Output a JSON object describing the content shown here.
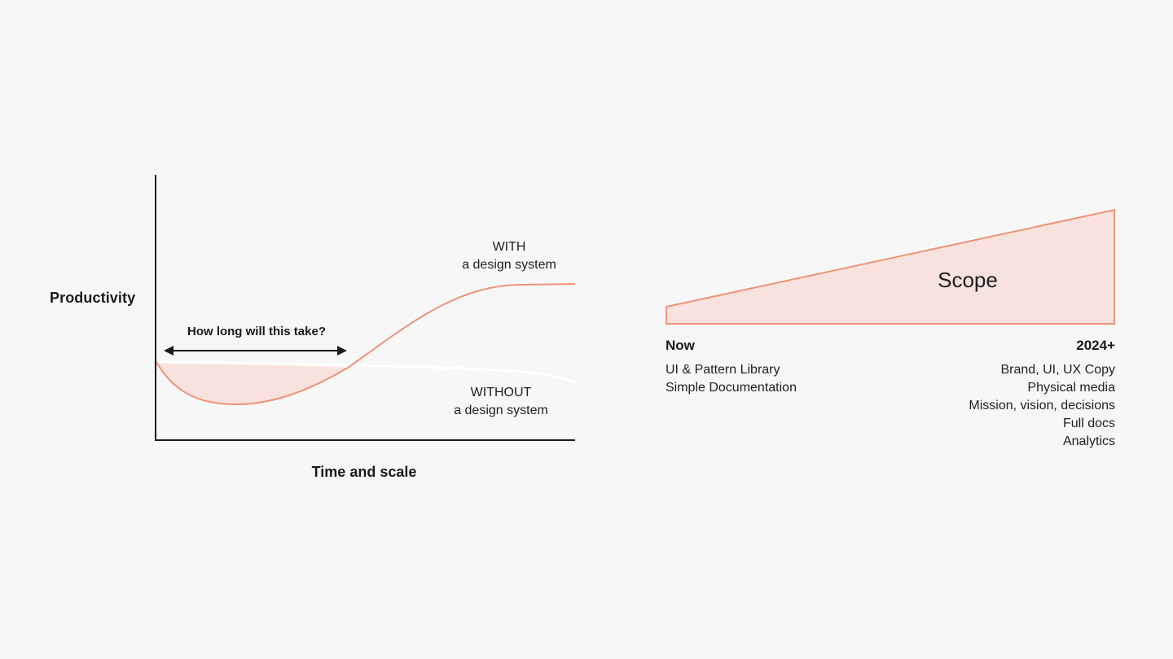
{
  "colors": {
    "background": "#f7f7f7",
    "accent_stroke": "#ee9477",
    "accent_fill": "#f8e2dd",
    "axis": "#1a1a1a",
    "without_line": "#ffffff"
  },
  "productivity_chart": {
    "y_axis_label": "Productivity",
    "x_axis_label": "Time and scale",
    "question": "How long will this take?",
    "with_label": {
      "line1": "WITH",
      "line2": "a design system"
    },
    "without_label": {
      "line1": "WITHOUT",
      "line2": "a design system"
    }
  },
  "scope_diagram": {
    "scope_label": "Scope",
    "now": {
      "title": "Now",
      "items": [
        "UI & Pattern Library",
        "Simple Documentation"
      ]
    },
    "future": {
      "title": "2024+",
      "items": [
        "Brand, UI, UX Copy",
        "Physical media",
        "Mission, vision, decisions",
        "Full docs",
        "Analytics"
      ]
    }
  }
}
